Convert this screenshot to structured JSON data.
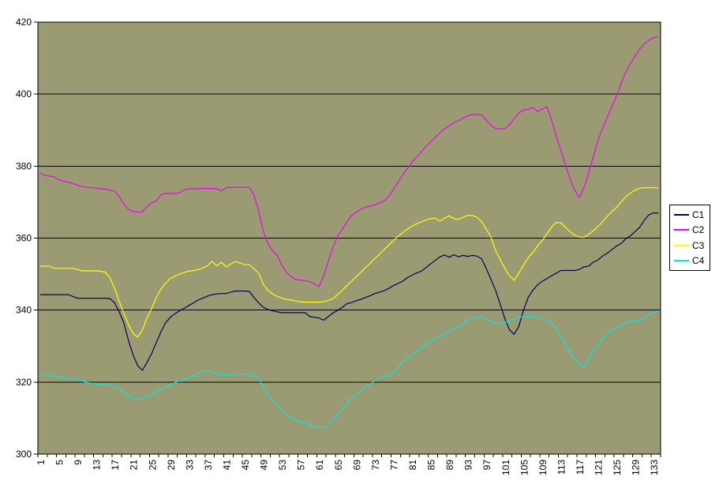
{
  "window": {
    "background": "#FFFFFF"
  },
  "chart_data": {
    "type": "line",
    "title": "",
    "xlabel": "",
    "ylabel": "",
    "x_count": 134,
    "x_tick_labels": [
      1,
      5,
      9,
      13,
      17,
      21,
      25,
      29,
      33,
      37,
      41,
      45,
      49,
      53,
      57,
      61,
      65,
      69,
      73,
      77,
      81,
      85,
      89,
      93,
      97,
      101,
      105,
      109,
      113,
      117,
      121,
      125,
      129,
      133
    ],
    "y_min": 300,
    "y_max": 420,
    "y_ticks": [
      300,
      320,
      340,
      360,
      380,
      400,
      420
    ],
    "grid": "horizontal",
    "grid_color": "#000000",
    "axis_color": "#000000",
    "plot_bg": "#9B9B73",
    "outer_bg": "#FFFFFF",
    "legend_position": "right",
    "series": [
      {
        "name": "C1",
        "color": "#000060",
        "values": [
          344.3,
          344.3,
          344.3,
          344.3,
          344.3,
          344.3,
          344.3,
          343.8,
          343.3,
          343.3,
          343.3,
          343.3,
          343.3,
          343.3,
          343.3,
          343.2,
          342,
          339.5,
          336.5,
          331.5,
          327.5,
          324.5,
          323.3,
          325.5,
          328,
          331,
          334,
          336.5,
          338,
          339,
          339.8,
          340.5,
          341.3,
          342,
          342.8,
          343.3,
          343.9,
          344.3,
          344.5,
          344.6,
          344.6,
          345,
          345.3,
          345.3,
          345.3,
          345.2,
          343.5,
          342,
          340.8,
          340.2,
          339.8,
          339.5,
          339.3,
          339.3,
          339.3,
          339.3,
          339.3,
          339.3,
          338.2,
          338,
          337.8,
          337.2,
          338.2,
          339.2,
          339.9,
          340.8,
          341.8,
          342.1,
          342.6,
          343,
          343.5,
          344,
          344.6,
          345,
          345.4,
          346,
          346.8,
          347.4,
          348,
          349,
          349.7,
          350.3,
          350.8,
          351.8,
          352.8,
          353.8,
          354.8,
          355.3,
          354.7,
          355.4,
          354.8,
          355.2,
          354.9,
          355.2,
          355,
          354.2,
          351.5,
          348.5,
          345.5,
          341.5,
          337.5,
          334.5,
          333.3,
          335.5,
          340,
          343.5,
          345.5,
          347,
          348,
          348.7,
          349.5,
          350.2,
          351,
          351,
          351,
          351,
          351.3,
          352,
          352.2,
          353.3,
          353.9,
          355,
          355.8,
          356.8,
          357.8,
          358.5,
          359.8,
          360.6,
          361.8,
          363,
          365,
          366.5,
          367,
          367
        ]
      },
      {
        "name": "C2",
        "color": "#EE00EE",
        "values": [
          378,
          377.5,
          377.2,
          377,
          376.2,
          375.9,
          375.5,
          375.2,
          374.7,
          374.3,
          374.1,
          374,
          373.9,
          373.7,
          373.6,
          373.3,
          373.1,
          371.5,
          369.5,
          368,
          367.4,
          367.2,
          367.3,
          368.8,
          369.8,
          370.3,
          372,
          372.4,
          372.4,
          372.4,
          372.6,
          373.4,
          373.7,
          373.7,
          373.7,
          373.8,
          373.8,
          373.8,
          373.7,
          373.1,
          374,
          374.1,
          374.1,
          374.1,
          374.1,
          374.1,
          372,
          367.5,
          362,
          358.5,
          356.5,
          355.3,
          352.5,
          350.5,
          349.3,
          348.5,
          348.3,
          348.2,
          347.9,
          347.3,
          346.5,
          349.5,
          353.5,
          357.5,
          360.5,
          362.5,
          364.5,
          366.2,
          367.2,
          368,
          368.6,
          368.9,
          369.2,
          369.8,
          370.3,
          371.5,
          373.5,
          375.5,
          377.5,
          379.3,
          381,
          382.5,
          384,
          385.5,
          386.7,
          388,
          389.2,
          390.3,
          391.2,
          392,
          392.6,
          393.3,
          394,
          394.3,
          394.3,
          394.2,
          392.8,
          391.3,
          390.5,
          390.3,
          390.4,
          391.5,
          393.2,
          394.8,
          395.6,
          395.8,
          396.3,
          395.2,
          395.8,
          396.5,
          393,
          388.5,
          384.5,
          380.5,
          376.5,
          373.3,
          371.3,
          374,
          377.9,
          382.5,
          387,
          390.5,
          393.5,
          396.5,
          399.5,
          403,
          406,
          408.5,
          410.5,
          412.5,
          414,
          415,
          415.7,
          416
        ]
      },
      {
        "name": "C3",
        "color": "#FFFF00",
        "values": [
          352.2,
          352.2,
          352.2,
          351.6,
          351.6,
          351.6,
          351.6,
          351.6,
          351.3,
          350.9,
          350.9,
          350.9,
          350.9,
          350.8,
          350.5,
          349,
          346,
          342.5,
          339,
          336,
          333.5,
          332.5,
          334.5,
          338,
          340.5,
          343.5,
          345.8,
          347.5,
          348.8,
          349.4,
          350,
          350.5,
          350.8,
          351,
          351.2,
          351.7,
          352.3,
          353.5,
          352.3,
          353.3,
          352,
          352.8,
          353.5,
          353.1,
          352.6,
          352.6,
          351.5,
          350.3,
          347.2,
          345.5,
          344.5,
          343.8,
          343.3,
          343,
          342.8,
          342.5,
          342.3,
          342.2,
          342.2,
          342.2,
          342.2,
          342.3,
          342.7,
          343.2,
          344.3,
          345.5,
          346.8,
          348,
          349.3,
          350.5,
          351.8,
          353,
          354.3,
          355.5,
          356.8,
          358,
          359.3,
          360.5,
          361.5,
          362.5,
          363.3,
          364,
          364.5,
          365,
          365.4,
          365.5,
          364.7,
          365.5,
          366.2,
          365.4,
          365.2,
          365.8,
          366.3,
          366.3,
          365.8,
          364.5,
          362.5,
          360.3,
          356.5,
          354,
          351.5,
          349.5,
          348.3,
          350.3,
          352.5,
          354.5,
          356,
          357.8,
          359.3,
          361.1,
          363,
          364.3,
          364.3,
          363,
          361.8,
          360.8,
          360.3,
          360.2,
          361,
          362,
          363.2,
          364.5,
          366,
          367.3,
          368.5,
          370,
          371.5,
          372.5,
          373.3,
          373.9,
          374,
          374,
          374,
          374
        ]
      },
      {
        "name": "C4",
        "color": "#00E8E8",
        "values": [
          322.2,
          322.2,
          322.2,
          321.8,
          321.3,
          321.3,
          321,
          320.8,
          320.8,
          320.3,
          319.9,
          319.7,
          319.4,
          319.3,
          319.3,
          319.3,
          318.8,
          318.3,
          317,
          316.2,
          315.5,
          315.3,
          315.3,
          315.8,
          316.5,
          317.3,
          318,
          318.8,
          319.3,
          319.9,
          320.3,
          320.8,
          321.2,
          321.7,
          322.3,
          323,
          323.2,
          322.7,
          322.1,
          322.1,
          322.1,
          322.1,
          322.2,
          322.2,
          322.2,
          322.2,
          322,
          321,
          318.5,
          316.5,
          314.8,
          313.5,
          312,
          310.8,
          310.2,
          309.5,
          309,
          308.8,
          308.2,
          307.5,
          307.3,
          307.3,
          308,
          309.5,
          311,
          312.5,
          314,
          315.5,
          316.5,
          317.6,
          318.5,
          319.4,
          320.5,
          321.3,
          321.6,
          321.8,
          322.5,
          324,
          325.5,
          326.5,
          327.5,
          328.5,
          329.5,
          330.5,
          331.3,
          331.9,
          332.5,
          333.4,
          334.2,
          334.8,
          335.3,
          336.3,
          337.3,
          337.7,
          338,
          338.2,
          337.5,
          336.8,
          336.4,
          336.2,
          336.5,
          337,
          337.5,
          338,
          338.2,
          338.2,
          338.2,
          338,
          337.7,
          337.2,
          336.5,
          335,
          332.8,
          330.5,
          328.3,
          326.5,
          324.8,
          324.3,
          326.5,
          328.8,
          330.5,
          331.8,
          333.2,
          334.4,
          335.3,
          335.8,
          336.5,
          336.9,
          337,
          337,
          338,
          338.8,
          339.3,
          339.7
        ]
      }
    ]
  },
  "legend": {
    "entries": [
      "C1",
      "C2",
      "C3",
      "C4"
    ]
  }
}
